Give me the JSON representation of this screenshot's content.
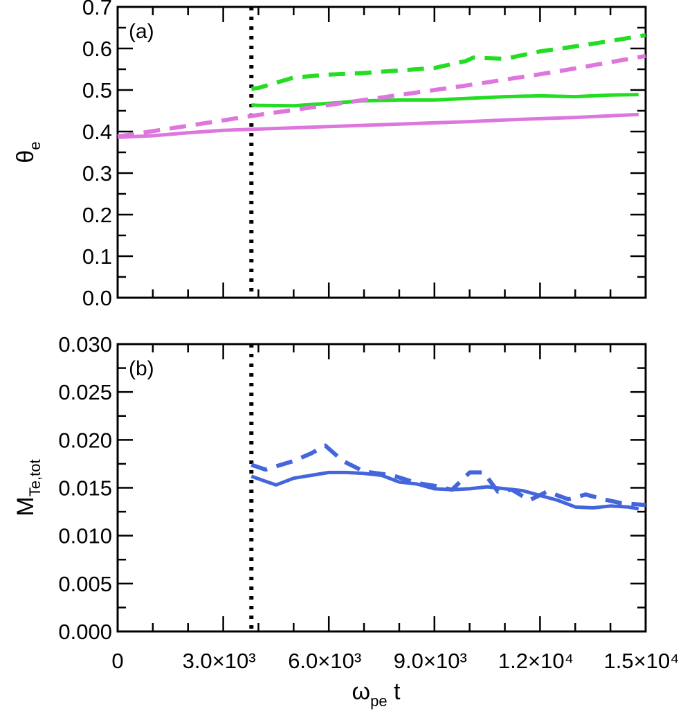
{
  "chart_data": [
    {
      "type": "line",
      "panel_label": "(a)",
      "ylabel": {
        "symbol": "θ",
        "subscript": "e"
      },
      "xlim": [
        0,
        15000
      ],
      "ylim": [
        0,
        0.7
      ],
      "yticks": [
        "0.0",
        "0.1",
        "0.2",
        "0.3",
        "0.4",
        "0.5",
        "0.6",
        "0.7"
      ],
      "vline_x": 3800,
      "series": [
        {
          "name": "green dashed",
          "color": "#22dd22",
          "dash": true,
          "x": [
            3800,
            4000,
            5000,
            6000,
            7000,
            8000,
            9000,
            9900,
            10100,
            11000,
            12000,
            13000,
            14000,
            15000
          ],
          "y": [
            0.503,
            0.505,
            0.53,
            0.537,
            0.541,
            0.547,
            0.553,
            0.57,
            0.578,
            0.575,
            0.593,
            0.605,
            0.618,
            0.632
          ]
        },
        {
          "name": "green solid",
          "color": "#22dd22",
          "dash": false,
          "x": [
            3800,
            4000,
            5000,
            6000,
            7000,
            8000,
            9000,
            10000,
            11000,
            12000,
            13000,
            14000,
            14800
          ],
          "y": [
            0.464,
            0.463,
            0.462,
            0.468,
            0.474,
            0.476,
            0.476,
            0.48,
            0.484,
            0.486,
            0.484,
            0.488,
            0.489
          ]
        },
        {
          "name": "magenta dashed",
          "color": "#dd77dd",
          "dash": true,
          "x": [
            0,
            1000,
            2000,
            3000,
            4000,
            5000,
            6000,
            7000,
            8000,
            9000,
            10000,
            11000,
            12000,
            13000,
            14000,
            15000
          ],
          "y": [
            0.388,
            0.401,
            0.414,
            0.427,
            0.44,
            0.452,
            0.464,
            0.476,
            0.488,
            0.5,
            0.512,
            0.525,
            0.538,
            0.552,
            0.567,
            0.582
          ]
        },
        {
          "name": "magenta solid",
          "color": "#dd77dd",
          "dash": false,
          "x": [
            0,
            1000,
            2000,
            3000,
            4000,
            5000,
            6000,
            7000,
            8000,
            9000,
            10000,
            11000,
            12000,
            13000,
            14000,
            14800
          ],
          "y": [
            0.386,
            0.39,
            0.397,
            0.403,
            0.406,
            0.409,
            0.412,
            0.415,
            0.418,
            0.421,
            0.424,
            0.428,
            0.431,
            0.434,
            0.438,
            0.441
          ]
        }
      ]
    },
    {
      "type": "line",
      "panel_label": "(b)",
      "ylabel": {
        "symbol": "M",
        "subscript": "Te,tot"
      },
      "xlabel": {
        "symbol": "ω",
        "subscript": "pe",
        "suffix": " t"
      },
      "xlim": [
        0,
        15000
      ],
      "ylim": [
        0,
        0.03
      ],
      "yticks": [
        "0.000",
        "0.005",
        "0.010",
        "0.015",
        "0.020",
        "0.025",
        "0.030"
      ],
      "xticks": [
        "0",
        "3.0×10³",
        "6.0×10³",
        "9.0×10³",
        "1.2×10⁴",
        "1.5×10⁴"
      ],
      "vline_x": 3800,
      "series": [
        {
          "name": "blue dashed",
          "color": "#4466dd",
          "dash": true,
          "x": [
            3800,
            4200,
            5000,
            5500,
            5900,
            6400,
            7000,
            7800,
            8500,
            9000,
            9500,
            10000,
            10400,
            10800,
            11200,
            11700,
            12200,
            12800,
            13300,
            13800,
            14300,
            15000
          ],
          "y": [
            0.0174,
            0.0169,
            0.0178,
            0.0186,
            0.0194,
            0.0178,
            0.0167,
            0.0163,
            0.0155,
            0.0152,
            0.0148,
            0.0166,
            0.0166,
            0.0146,
            0.0148,
            0.0137,
            0.0146,
            0.0138,
            0.0143,
            0.0138,
            0.0134,
            0.0132
          ]
        },
        {
          "name": "blue solid",
          "color": "#4466dd",
          "dash": false,
          "x": [
            3800,
            4100,
            4500,
            5000,
            5500,
            6000,
            6500,
            7000,
            7500,
            8000,
            8500,
            9000,
            9500,
            10000,
            10500,
            11000,
            11500,
            12000,
            12500,
            13000,
            13500,
            14000,
            14500,
            14800
          ],
          "y": [
            0.0162,
            0.0158,
            0.0153,
            0.016,
            0.0163,
            0.0166,
            0.0166,
            0.0165,
            0.0163,
            0.0156,
            0.0154,
            0.0149,
            0.0148,
            0.0149,
            0.0151,
            0.0149,
            0.0147,
            0.0142,
            0.0137,
            0.013,
            0.0129,
            0.0131,
            0.013,
            0.0128
          ]
        }
      ]
    }
  ]
}
